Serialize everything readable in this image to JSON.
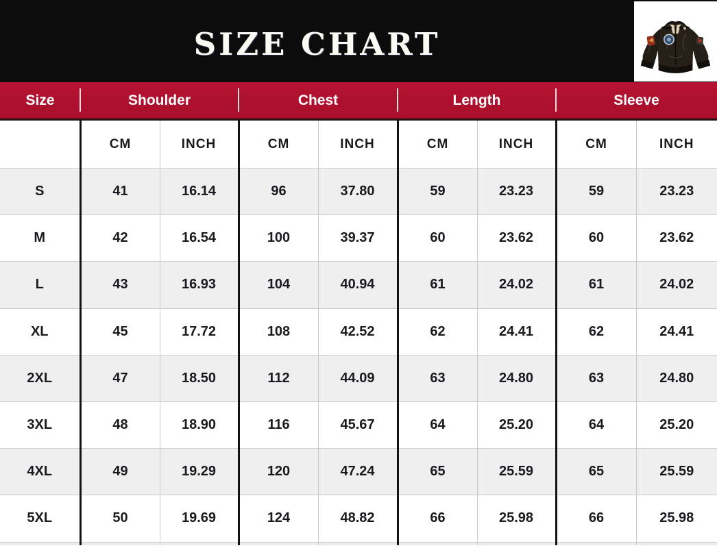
{
  "banner": {
    "title": "SIZE CHART",
    "image_alt": "black leather bomber jacket with patches"
  },
  "colors": {
    "banner_bg": "#0c0c0c",
    "header_bg": "#ac0f2c",
    "header_text": "#ffffff",
    "stripe_bg": "#efefef",
    "grid_thin": "#c9c9c9",
    "grid_thick": "#141414",
    "value_text": "#191920"
  },
  "chart_data": {
    "type": "table",
    "title": "SIZE CHART",
    "column_groups": [
      {
        "label": "Size",
        "span": 1
      },
      {
        "label": "Shoulder",
        "span": 2
      },
      {
        "label": "Chest",
        "span": 2
      },
      {
        "label": "Length",
        "span": 2
      },
      {
        "label": "Sleeve",
        "span": 2
      }
    ],
    "unit_headers": [
      "",
      "CM",
      "INCH",
      "CM",
      "INCH",
      "CM",
      "INCH",
      "CM",
      "INCH"
    ],
    "rows": [
      {
        "size": "S",
        "values": [
          "41",
          "16.14",
          "96",
          "37.80",
          "59",
          "23.23",
          "59",
          "23.23"
        ]
      },
      {
        "size": "M",
        "values": [
          "42",
          "16.54",
          "100",
          "39.37",
          "60",
          "23.62",
          "60",
          "23.62"
        ]
      },
      {
        "size": "L",
        "values": [
          "43",
          "16.93",
          "104",
          "40.94",
          "61",
          "24.02",
          "61",
          "24.02"
        ]
      },
      {
        "size": "XL",
        "values": [
          "45",
          "17.72",
          "108",
          "42.52",
          "62",
          "24.41",
          "62",
          "24.41"
        ]
      },
      {
        "size": "2XL",
        "values": [
          "47",
          "18.50",
          "112",
          "44.09",
          "63",
          "24.80",
          "63",
          "24.80"
        ]
      },
      {
        "size": "3XL",
        "values": [
          "48",
          "18.90",
          "116",
          "45.67",
          "64",
          "25.20",
          "64",
          "25.20"
        ]
      },
      {
        "size": "4XL",
        "values": [
          "49",
          "19.29",
          "120",
          "47.24",
          "65",
          "25.59",
          "65",
          "25.59"
        ]
      },
      {
        "size": "5XL",
        "values": [
          "50",
          "19.69",
          "124",
          "48.82",
          "66",
          "25.98",
          "66",
          "25.98"
        ]
      }
    ]
  }
}
